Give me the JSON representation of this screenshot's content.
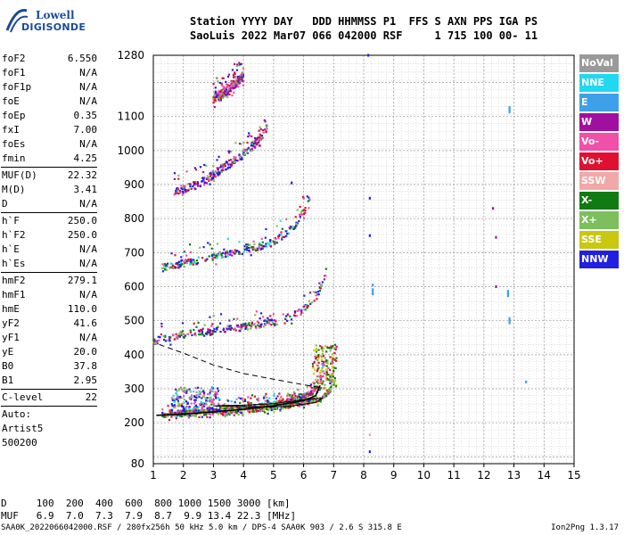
{
  "logo": {
    "line1": "Lowell",
    "line2": "DIGISONDE"
  },
  "header": {
    "line1": "Station YYYY DAY   DDD HHMMSS P1  FFS S AXN PPS IGA PS",
    "line2": "SaoLuis 2022 Mar07 066 042000 RSF     1 715 100 00- 11"
  },
  "params": [
    {
      "label": "foF2",
      "value": "6.550"
    },
    {
      "label": "foF1",
      "value": "N/A"
    },
    {
      "label": "foF1p",
      "value": "N/A"
    },
    {
      "label": "foE",
      "value": "N/A"
    },
    {
      "label": "foEp",
      "value": "0.35"
    },
    {
      "label": "fxI",
      "value": "7.00"
    },
    {
      "label": "foEs",
      "value": "N/A"
    },
    {
      "label": "fmin",
      "value": "4.25"
    },
    {
      "sep": true
    },
    {
      "label": "MUF(D)",
      "value": "22.32"
    },
    {
      "label": "M(D)",
      "value": "3.41"
    },
    {
      "label": "D",
      "value": "N/A"
    },
    {
      "sep": true
    },
    {
      "label": "h`F",
      "value": "250.0"
    },
    {
      "label": "h`F2",
      "value": "250.0"
    },
    {
      "label": "h`E",
      "value": "N/A"
    },
    {
      "label": "h`Es",
      "value": "N/A"
    },
    {
      "sep": true
    },
    {
      "label": "hmF2",
      "value": "279.1"
    },
    {
      "label": "hmF1",
      "value": "N/A"
    },
    {
      "label": "hmE",
      "value": "110.0"
    },
    {
      "label": "yF2",
      "value": "41.6"
    },
    {
      "label": "yF1",
      "value": "N/A"
    },
    {
      "label": "yE",
      "value": "20.0"
    },
    {
      "label": "B0",
      "value": "37.8"
    },
    {
      "label": "B1",
      "value": "2.95"
    },
    {
      "sep": true
    },
    {
      "label": "C-level",
      "value": "22"
    },
    {
      "sep": true
    },
    {
      "label": "Auto:",
      "value": ""
    },
    {
      "label": "Artist5",
      "value": ""
    },
    {
      "label": "500200",
      "value": ""
    }
  ],
  "legend": [
    {
      "label": "NoVal",
      "color": "#9a9a9a"
    },
    {
      "label": "NNE",
      "color": "#22d8f0"
    },
    {
      "label": "E",
      "color": "#3ea0e8"
    },
    {
      "label": "W",
      "color": "#a010a0"
    },
    {
      "label": "Vo-",
      "color": "#f050a8"
    },
    {
      "label": "Vo+",
      "color": "#e01030"
    },
    {
      "label": "SSW",
      "color": "#f2a8a8"
    },
    {
      "label": "X-",
      "color": "#127a12"
    },
    {
      "label": "X+",
      "color": "#7cbf5c"
    },
    {
      "label": "SSE",
      "color": "#c8c810"
    },
    {
      "label": "NNW",
      "color": "#2020e0"
    }
  ],
  "chart_data": {
    "type": "scatter",
    "title": "",
    "xlabel": "",
    "ylabel": "",
    "xlim": [
      1,
      15
    ],
    "ylim": [
      80,
      1280
    ],
    "x_ticks": [
      1,
      2,
      3,
      4,
      5,
      6,
      7,
      8,
      9,
      10,
      11,
      12,
      13,
      14,
      15
    ],
    "y_ticks": [
      80,
      200,
      300,
      400,
      500,
      600,
      700,
      800,
      900,
      1000,
      1100,
      1280
    ],
    "grid": true,
    "traces": [
      {
        "name": "F2 trace (O)",
        "points": [
          [
            1.3,
            222
          ],
          [
            2.0,
            228
          ],
          [
            3.0,
            235
          ],
          [
            4.0,
            244
          ],
          [
            5.0,
            255
          ],
          [
            5.5,
            264
          ],
          [
            6.0,
            278
          ],
          [
            6.3,
            290
          ],
          [
            6.5,
            312
          ],
          [
            6.6,
            345
          ],
          [
            6.7,
            390
          ]
        ]
      },
      {
        "name": "F2 trace (X)",
        "points": [
          [
            1.8,
            225
          ],
          [
            3.0,
            232
          ],
          [
            4.0,
            238
          ],
          [
            5.0,
            246
          ],
          [
            6.0,
            258
          ],
          [
            6.6,
            270
          ],
          [
            6.9,
            300
          ],
          [
            7.0,
            350
          ],
          [
            7.0,
            410
          ]
        ]
      },
      {
        "name": "2F2 multiple",
        "points": [
          [
            1.0,
            440
          ],
          [
            2.0,
            460
          ],
          [
            3.0,
            470
          ],
          [
            4.0,
            482
          ],
          [
            5.0,
            496
          ],
          [
            5.5,
            510
          ],
          [
            6.0,
            535
          ],
          [
            6.4,
            565
          ],
          [
            6.6,
            600
          ],
          [
            6.8,
            650
          ]
        ]
      },
      {
        "name": "3F2 multiple",
        "points": [
          [
            1.3,
            655
          ],
          [
            2.0,
            668
          ],
          [
            3.0,
            688
          ],
          [
            4.0,
            708
          ],
          [
            5.0,
            730
          ],
          [
            5.6,
            770
          ],
          [
            6.0,
            820
          ],
          [
            6.2,
            850
          ]
        ]
      },
      {
        "name": "4F2 multiple",
        "points": [
          [
            1.7,
            880
          ],
          [
            2.5,
            900
          ],
          [
            3.0,
            930
          ],
          [
            3.5,
            960
          ],
          [
            4.0,
            990
          ],
          [
            4.5,
            1030
          ],
          [
            4.8,
            1070
          ]
        ]
      },
      {
        "name": "5F2 multiple",
        "points": [
          [
            3.0,
            1150
          ],
          [
            3.5,
            1180
          ],
          [
            4.0,
            1220
          ]
        ]
      }
    ],
    "profile_curve": {
      "name": "Electron density profile",
      "points": [
        [
          1.1,
          222
        ],
        [
          2.0,
          226
        ],
        [
          3.0,
          232
        ],
        [
          4.0,
          240
        ],
        [
          5.0,
          250
        ],
        [
          6.0,
          265
        ],
        [
          6.4,
          280
        ],
        [
          6.55,
          310
        ]
      ]
    },
    "dashed_curve": {
      "points": [
        [
          1.2,
          430
        ],
        [
          2.0,
          405
        ],
        [
          3.0,
          370
        ],
        [
          4.0,
          345
        ],
        [
          5.0,
          328
        ],
        [
          6.0,
          312
        ],
        [
          6.5,
          305
        ]
      ]
    },
    "loop_curve": {
      "points": [
        [
          3.0,
          250
        ],
        [
          4.0,
          252
        ],
        [
          5.0,
          256
        ],
        [
          6.0,
          268
        ],
        [
          6.6,
          272
        ],
        [
          6.4,
          260
        ],
        [
          5.5,
          248
        ],
        [
          4.5,
          246
        ]
      ]
    },
    "isolated_points": [
      {
        "x": 8.15,
        "y": 1280,
        "type": "NNW"
      },
      {
        "x": 8.2,
        "y": 860,
        "type": "NNW"
      },
      {
        "x": 8.2,
        "y": 750,
        "type": "NNW"
      },
      {
        "x": 8.3,
        "y": 585,
        "type": "E"
      },
      {
        "x": 8.2,
        "y": 115,
        "type": "NNW"
      },
      {
        "x": 8.2,
        "y": 165,
        "type": "SSW"
      },
      {
        "x": 12.3,
        "y": 830,
        "type": "W"
      },
      {
        "x": 12.4,
        "y": 745,
        "type": "W"
      },
      {
        "x": 12.4,
        "y": 600,
        "type": "W"
      },
      {
        "x": 12.85,
        "y": 1120,
        "type": "E"
      },
      {
        "x": 12.8,
        "y": 580,
        "type": "E"
      },
      {
        "x": 12.85,
        "y": 500,
        "type": "E"
      },
      {
        "x": 13.4,
        "y": 320,
        "type": "E"
      },
      {
        "x": 5.6,
        "y": 905,
        "type": "NNW"
      },
      {
        "x": 8.3,
        "y": 605,
        "type": "E"
      }
    ]
  },
  "footer": {
    "line1": "D     100  200  400  600  800 1000 1500 3000 [km]",
    "line2": "MUF   6.9  7.0  7.3  7.9  8.7  9.9 13.4 22.3 [MHz]"
  },
  "fileinfo": "SAA0K_2022066042000.RSF / 280fx256h 50 kHz 5.0 km / DPS-4 SAA0K 903 / 2.6 S 315.8 E",
  "version": "Ion2Png 1.3.17"
}
